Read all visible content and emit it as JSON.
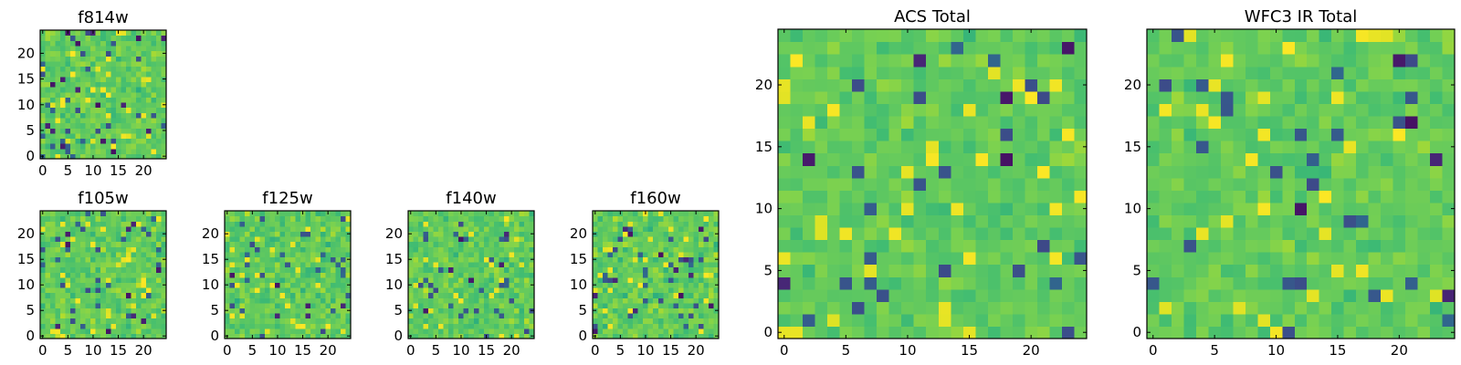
{
  "chart_data": [
    {
      "type": "heatmap",
      "title": "f814w",
      "xlabel": "",
      "ylabel": "",
      "grid": false,
      "xlim": [
        -0.5,
        24.5
      ],
      "ylim": [
        -0.5,
        24.5
      ],
      "x_ticks": [
        "0",
        "5",
        "10",
        "15",
        "20"
      ],
      "y_ticks": [
        "0",
        "5",
        "10",
        "15",
        "20"
      ],
      "colormap": "viridis",
      "value_range": [
        0,
        1
      ],
      "rows": 25,
      "cols": 25,
      "seed": 814,
      "contrast": 0.16
    },
    {
      "type": "heatmap",
      "title": "f105w",
      "xlabel": "",
      "ylabel": "",
      "grid": false,
      "xlim": [
        -0.5,
        24.5
      ],
      "ylim": [
        -0.5,
        24.5
      ],
      "x_ticks": [
        "0",
        "5",
        "10",
        "15",
        "20"
      ],
      "y_ticks": [
        "0",
        "5",
        "10",
        "15",
        "20"
      ],
      "colormap": "viridis",
      "value_range": [
        0,
        1
      ],
      "rows": 25,
      "cols": 25,
      "seed": 105,
      "contrast": 0.17
    },
    {
      "type": "heatmap",
      "title": "f125w",
      "xlabel": "",
      "ylabel": "",
      "grid": false,
      "xlim": [
        -0.5,
        24.5
      ],
      "ylim": [
        -0.5,
        24.5
      ],
      "x_ticks": [
        "0",
        "5",
        "10",
        "15",
        "20"
      ],
      "y_ticks": [
        "0",
        "5",
        "10",
        "15",
        "20"
      ],
      "colormap": "viridis",
      "value_range": [
        0,
        1
      ],
      "rows": 25,
      "cols": 25,
      "seed": 125,
      "contrast": 0.16
    },
    {
      "type": "heatmap",
      "title": "f140w",
      "xlabel": "",
      "ylabel": "",
      "grid": false,
      "xlim": [
        -0.5,
        24.5
      ],
      "ylim": [
        -0.5,
        24.5
      ],
      "x_ticks": [
        "0",
        "5",
        "10",
        "15",
        "20"
      ],
      "y_ticks": [
        "0",
        "5",
        "10",
        "15",
        "20"
      ],
      "colormap": "viridis",
      "value_range": [
        0,
        1
      ],
      "rows": 25,
      "cols": 25,
      "seed": 140,
      "contrast": 0.16
    },
    {
      "type": "heatmap",
      "title": "f160w",
      "xlabel": "",
      "ylabel": "",
      "grid": false,
      "xlim": [
        -0.5,
        24.5
      ],
      "ylim": [
        -0.5,
        24.5
      ],
      "x_ticks": [
        "0",
        "5",
        "10",
        "15",
        "20"
      ],
      "y_ticks": [
        "0",
        "5",
        "10",
        "15",
        "20"
      ],
      "colormap": "viridis",
      "value_range": [
        0,
        1
      ],
      "rows": 25,
      "cols": 25,
      "seed": 160,
      "contrast": 0.17
    },
    {
      "type": "heatmap",
      "title": "ACS Total",
      "xlabel": "",
      "ylabel": "",
      "grid": false,
      "xlim": [
        -0.5,
        24.5
      ],
      "ylim": [
        -0.5,
        24.5
      ],
      "x_ticks": [
        "0",
        "5",
        "10",
        "15",
        "20"
      ],
      "y_ticks": [
        "0",
        "5",
        "10",
        "15",
        "20"
      ],
      "colormap": "viridis",
      "value_range": [
        0,
        1
      ],
      "rows": 25,
      "cols": 25,
      "seed": 2001,
      "contrast": 0.13
    },
    {
      "type": "heatmap",
      "title": "WFC3 IR Total",
      "xlabel": "",
      "ylabel": "",
      "grid": false,
      "xlim": [
        -0.5,
        24.5
      ],
      "ylim": [
        -0.5,
        24.5
      ],
      "x_ticks": [
        "0",
        "5",
        "10",
        "15",
        "20"
      ],
      "y_ticks": [
        "0",
        "5",
        "10",
        "15",
        "20"
      ],
      "colormap": "viridis",
      "value_range": [
        0,
        1
      ],
      "rows": 25,
      "cols": 25,
      "seed": 3003,
      "contrast": 0.13
    }
  ]
}
